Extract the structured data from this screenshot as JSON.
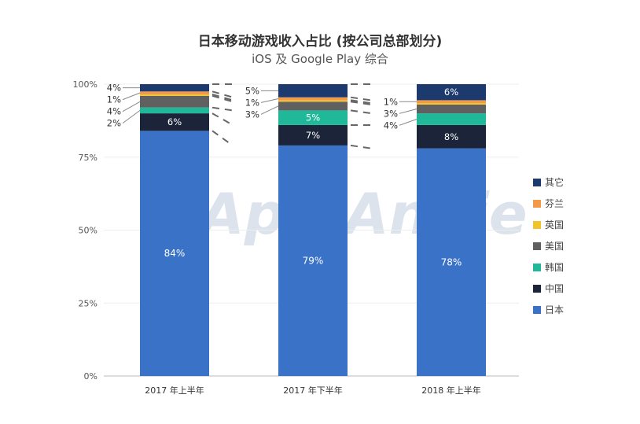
{
  "chart_data": {
    "type": "bar",
    "stacked": true,
    "title": "日本移动游戏收入占比 (按公司总部划分)",
    "subtitle": "iOS 及 Google Play 综合",
    "watermark": "App Annie",
    "categories": [
      "2017 年上半年",
      "2017 年下半年",
      "2018 年上半年"
    ],
    "ylim": [
      0,
      100
    ],
    "yticks": [
      "0%",
      "25%",
      "50%",
      "75%",
      "100%"
    ],
    "series": [
      {
        "name": "日本",
        "color": "#3a72c8",
        "values": [
          84,
          79,
          78
        ],
        "labels": [
          "84%",
          "79%",
          "78%"
        ]
      },
      {
        "name": "中国",
        "color": "#1b2438",
        "values": [
          6,
          7,
          8
        ],
        "labels": [
          "6%",
          "7%",
          "8%"
        ]
      },
      {
        "name": "韩国",
        "color": "#1fb99a",
        "values": [
          2,
          5,
          4
        ],
        "labels": [
          "2%",
          "5%",
          "4%"
        ]
      },
      {
        "name": "美国",
        "color": "#606060",
        "values": [
          4,
          3,
          3
        ],
        "labels": [
          "4%",
          "3%",
          "3%"
        ]
      },
      {
        "name": "英国",
        "color": "#f2c42c",
        "values": [
          0.5,
          0.5,
          0.5
        ],
        "labels": [
          "",
          "",
          ""
        ]
      },
      {
        "name": "芬兰",
        "color": "#f39a4a",
        "values": [
          1,
          1,
          1
        ],
        "labels": [
          "1%",
          "1%",
          "1%"
        ]
      },
      {
        "name": "其它",
        "color": "#1d3a6e",
        "values": [
          4,
          5,
          6
        ],
        "labels": [
          "4%",
          "5%",
          "6%"
        ]
      }
    ],
    "legend": "right"
  }
}
